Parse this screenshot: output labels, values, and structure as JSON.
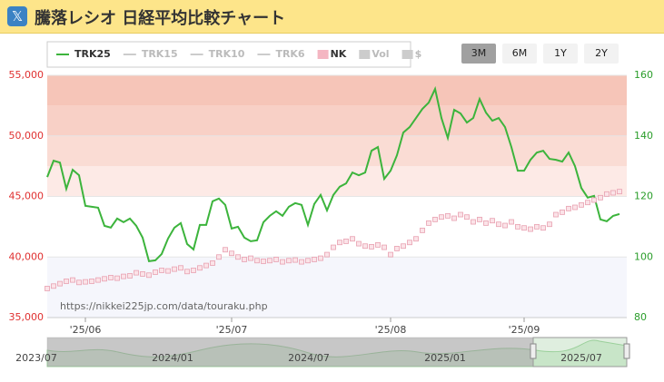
{
  "header": {
    "title": "騰落レシオ 日経平均比較チャート"
  },
  "chart_data": {
    "type": "line",
    "legend_items": [
      {
        "name": "TRK25",
        "color": "#3cb43c",
        "active": true
      },
      {
        "name": "TRK15",
        "color": "#cccccc",
        "active": false
      },
      {
        "name": "TRK10",
        "color": "#cccccc",
        "active": false
      },
      {
        "name": "TRK6",
        "color": "#cccccc",
        "active": false
      },
      {
        "name": "NK",
        "color": "#f4b6c2",
        "active": true
      },
      {
        "name": "Vol",
        "color": "#cccccc",
        "active": false
      },
      {
        "name": "$",
        "color": "#cccccc",
        "active": false
      }
    ],
    "range_buttons": [
      "3M",
      "6M",
      "1Y",
      "2Y"
    ],
    "selected_range": "3M",
    "categories": [
      null,
      null,
      null,
      null,
      null,
      null,
      "'25/06",
      null,
      null,
      null,
      null,
      null,
      null,
      null,
      null,
      null,
      null,
      null,
      null,
      null,
      null,
      null,
      null,
      null,
      null,
      null,
      null,
      null,
      null,
      "'25/07",
      null,
      null,
      null,
      null,
      null,
      null,
      null,
      null,
      null,
      null,
      null,
      null,
      null,
      null,
      null,
      null,
      null,
      null,
      null,
      null,
      null,
      null,
      null,
      null,
      "'25/08",
      null,
      null,
      null,
      null,
      null,
      null,
      null,
      null,
      null,
      null,
      null,
      null,
      null,
      null,
      null,
      null,
      null,
      null,
      null,
      null,
      "'25/09",
      null,
      null,
      null,
      null,
      null,
      null,
      null,
      null,
      null,
      null,
      null,
      null,
      null,
      null,
      null
    ],
    "series": [
      {
        "name": "TRK25",
        "color": "#3cb43c",
        "axis": "y2",
        "values": [
          126.4,
          131.8,
          131.2,
          122.5,
          128.8,
          127.0,
          116.9,
          116.6,
          116.3,
          110.3,
          109.7,
          112.7,
          111.5,
          112.7,
          110.3,
          106.4,
          98.6,
          98.9,
          101.0,
          106.1,
          109.7,
          111.2,
          104.3,
          102.5,
          110.6,
          110.6,
          118.4,
          119.3,
          117.2,
          109.4,
          110.0,
          106.4,
          105.2,
          105.5,
          111.5,
          113.6,
          115.1,
          113.6,
          116.6,
          117.8,
          117.2,
          110.6,
          117.5,
          120.5,
          115.4,
          120.5,
          123.2,
          124.3,
          127.9,
          127.0,
          127.9,
          135.1,
          136.3,
          125.8,
          128.5,
          133.6,
          141.1,
          142.9,
          145.9,
          148.9,
          151.0,
          155.5,
          145.9,
          139.3,
          148.6,
          147.4,
          144.4,
          145.9,
          152.2,
          147.7,
          145.0,
          145.9,
          142.9,
          136.3,
          128.5,
          128.5,
          132.1,
          134.5,
          135.1,
          132.4,
          132.1,
          131.5,
          134.5,
          130.0,
          122.8,
          119.6,
          120.2,
          112.4,
          111.8,
          113.6,
          114.2
        ]
      },
      {
        "name": "NK",
        "color": "#e8a0b0",
        "axis": "y",
        "values": [
          37400,
          37600,
          37800,
          38000,
          38100,
          37900,
          37950,
          38000,
          38100,
          38200,
          38300,
          38250,
          38400,
          38450,
          38700,
          38600,
          38500,
          38750,
          38900,
          38850,
          39000,
          39100,
          38800,
          38900,
          39100,
          39300,
          39500,
          40000,
          40600,
          40300,
          40000,
          39800,
          39900,
          39700,
          39650,
          39700,
          39800,
          39600,
          39700,
          39750,
          39600,
          39700,
          39800,
          39900,
          40200,
          40800,
          41200,
          41300,
          41500,
          41100,
          40900,
          40850,
          41000,
          40800,
          40200,
          40700,
          40900,
          41200,
          41500,
          42200,
          42800,
          43100,
          43300,
          43400,
          43200,
          43500,
          43300,
          42900,
          43100,
          42800,
          43000,
          42700,
          42600,
          42900,
          42500,
          42400,
          42300,
          42500,
          42400,
          42700,
          43500,
          43700,
          44000,
          44100,
          44300,
          44500,
          44700,
          44900,
          45200,
          45300,
          45400
        ]
      }
    ],
    "ylim": [
      35000,
      55000
    ],
    "yticks": [
      {
        "value": 35000,
        "label": "35,000"
      },
      {
        "value": 40000,
        "label": "40,000"
      },
      {
        "value": 45000,
        "label": "45,000"
      },
      {
        "value": 50000,
        "label": "50,000"
      },
      {
        "value": 55000,
        "label": "55,000"
      }
    ],
    "y2lim": [
      80,
      160
    ],
    "y2ticks": [
      80,
      100,
      120,
      140,
      160
    ],
    "bands": [
      {
        "from": 35000,
        "to": 40000,
        "color": "#f5f6fc"
      },
      {
        "from": 45000,
        "to": 47500,
        "color": "#fdeae6"
      },
      {
        "from": 47500,
        "to": 50000,
        "color": "#fadcd4"
      },
      {
        "from": 50000,
        "to": 52500,
        "color": "#f8d0c6"
      },
      {
        "from": 52500,
        "to": 55000,
        "color": "#f6c5b8"
      }
    ],
    "source": "https://nikkei225jp.com/data/touraku.php",
    "navigator_labels": [
      "2023/07",
      "2024/01",
      "2024/07",
      "2025/01",
      "2025/07"
    ]
  }
}
